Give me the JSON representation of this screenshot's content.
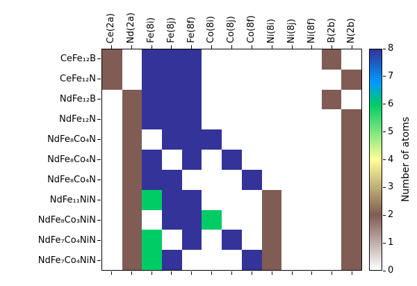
{
  "chart_data": {
    "type": "heatmap",
    "title": "",
    "xlabel": "",
    "ylabel": "",
    "columns": [
      "Ce(2a)",
      "Nd(2a)",
      "Fe(8i)",
      "Fe(8j)",
      "Fe(8f)",
      "Co(8i)",
      "Co(8j)",
      "Co(8f)",
      "Ni(8i)",
      "Ni(8j)",
      "Ni(8f)",
      "B(2b)",
      "N(2b)"
    ],
    "rows": [
      "CeFe₁₂B",
      "CeFe₁₂N",
      "NdFe₁₂B",
      "NdFe₁₂N",
      "NdFe₈Co₄N",
      "NdFe₈Co₄N",
      "NdFe₈Co₄N",
      "NdFe₁₁NiN",
      "NdFe₈Co₃NiN",
      "NdFe₇Co₄NiN",
      "NdFe₇Co₄NiN"
    ],
    "values": [
      [
        2,
        0,
        8,
        8,
        8,
        0,
        0,
        0,
        0,
        0,
        0,
        2,
        0
      ],
      [
        2,
        0,
        8,
        8,
        8,
        0,
        0,
        0,
        0,
        0,
        0,
        0,
        2
      ],
      [
        0,
        2,
        8,
        8,
        8,
        0,
        0,
        0,
        0,
        0,
        0,
        2,
        0
      ],
      [
        0,
        2,
        8,
        8,
        8,
        0,
        0,
        0,
        0,
        0,
        0,
        0,
        2
      ],
      [
        0,
        2,
        0,
        8,
        8,
        8,
        0,
        0,
        0,
        0,
        0,
        0,
        2
      ],
      [
        0,
        2,
        8,
        0,
        8,
        0,
        8,
        0,
        0,
        0,
        0,
        0,
        2
      ],
      [
        0,
        2,
        8,
        8,
        0,
        0,
        0,
        8,
        0,
        0,
        0,
        0,
        2
      ],
      [
        0,
        2,
        6,
        8,
        8,
        0,
        0,
        0,
        2,
        0,
        0,
        0,
        2
      ],
      [
        0,
        2,
        0,
        8,
        8,
        6,
        0,
        0,
        2,
        0,
        0,
        0,
        2
      ],
      [
        0,
        2,
        6,
        0,
        8,
        0,
        8,
        0,
        2,
        0,
        0,
        0,
        2
      ],
      [
        0,
        2,
        6,
        8,
        0,
        0,
        0,
        8,
        2,
        0,
        0,
        0,
        2
      ]
    ],
    "colorbar": {
      "label": "Number of atoms",
      "ticks": [
        0,
        1,
        2,
        3,
        4,
        5,
        6,
        7,
        8
      ],
      "min": 0,
      "max": 8,
      "colormap": "terrain_r",
      "colormap_stops": [
        {
          "value": 0,
          "color": "#ffffff"
        },
        {
          "value": 2,
          "color": "#805c54"
        },
        {
          "value": 4,
          "color": "#ffff99"
        },
        {
          "value": 6,
          "color": "#00cc66"
        },
        {
          "value": 6.8,
          "color": "#0099ff"
        },
        {
          "value": 8,
          "color": "#333399"
        }
      ]
    }
  }
}
